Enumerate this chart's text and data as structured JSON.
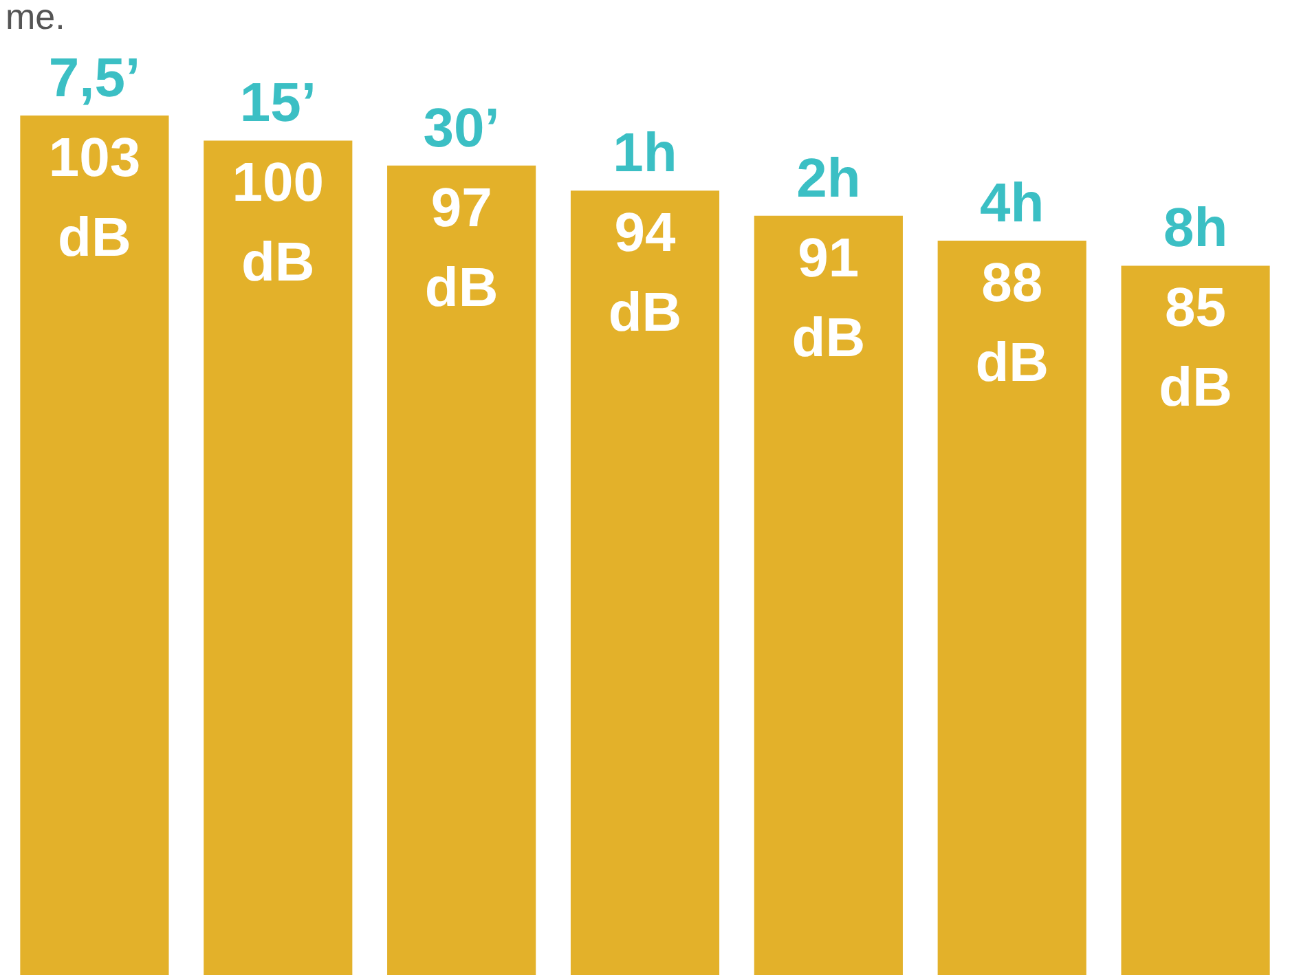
{
  "chart_data": {
    "type": "bar",
    "title": "me.",
    "categories": [
      "7,5’",
      "15’",
      "30’",
      "1h",
      "2h",
      "4h",
      "8h"
    ],
    "values": [
      103,
      100,
      97,
      94,
      91,
      88,
      85
    ],
    "value_labels": [
      "103 dB",
      "100 dB",
      "97 dB",
      "94 dB",
      "91 dB",
      "88 dB",
      "85 dB"
    ],
    "color": "#e3b12a",
    "grid": false
  }
}
